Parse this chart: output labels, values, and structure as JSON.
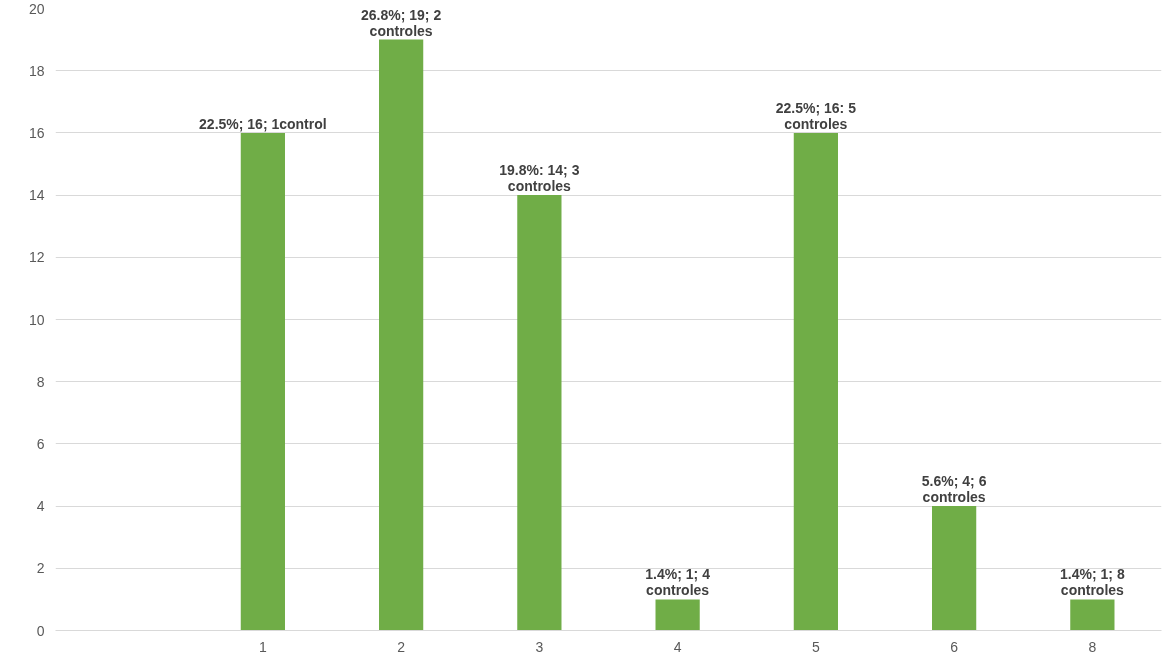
{
  "chart_data": {
    "type": "bar",
    "categories": [
      null,
      "1",
      "2",
      "3",
      "4",
      "5",
      "6",
      "8"
    ],
    "values": [
      null,
      16,
      19,
      14,
      1,
      16,
      4,
      1
    ],
    "color": "#70ad47",
    "value_labels": [
      null,
      "22.5%; 16; 1control",
      "26.8%; 19; 2 controles",
      "19.8%: 14; 3 controles",
      "1.4%; 1; 4 controles",
      "22.5%; 16: 5 controles",
      "5.6%; 4; 6 controles",
      "1.4%; 1; 8 controles"
    ],
    "ylim": [
      0,
      20
    ],
    "yticks": [
      0,
      2,
      4,
      6,
      8,
      10,
      12,
      14,
      16,
      18,
      20
    ],
    "grid": "y"
  }
}
